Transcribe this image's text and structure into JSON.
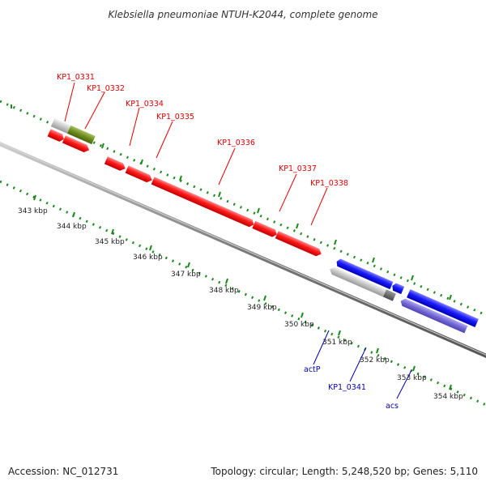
{
  "title": "Klebsiella pneumoniae NTUH-K2044, complete genome",
  "footer": {
    "accession": "Accession: NC_012731",
    "summary": "Topology: circular; Length: 5,248,520 bp; Genes: 5,110"
  },
  "colors": {
    "forward_gene": "#ff0000",
    "reverse_gene": "#0000ee",
    "rna_gene": "#6b5fd0",
    "pseudo_gene": "#999999",
    "other_gene": "#6e8c1c",
    "ticks": "#1a8a1a",
    "backbone": "#7a7a7a",
    "label_forward": "#e00000",
    "label_reverse": "#0000aa"
  },
  "scale": {
    "unit": "kbp",
    "tick_labels": [
      "343 kbp",
      "344 kbp",
      "345 kbp",
      "346 kbp",
      "347 kbp",
      "348 kbp",
      "349 kbp",
      "350 kbp",
      "351 kbp",
      "352 kbp",
      "353 kbp",
      "354 kbp"
    ]
  },
  "gene_labels": {
    "forward": [
      "KP1_0331",
      "KP1_0332",
      "KP1_0334",
      "KP1_0335",
      "KP1_0336",
      "KP1_0337",
      "KP1_0338"
    ],
    "reverse": [
      "actP",
      "KP1_0341",
      "acs"
    ]
  }
}
